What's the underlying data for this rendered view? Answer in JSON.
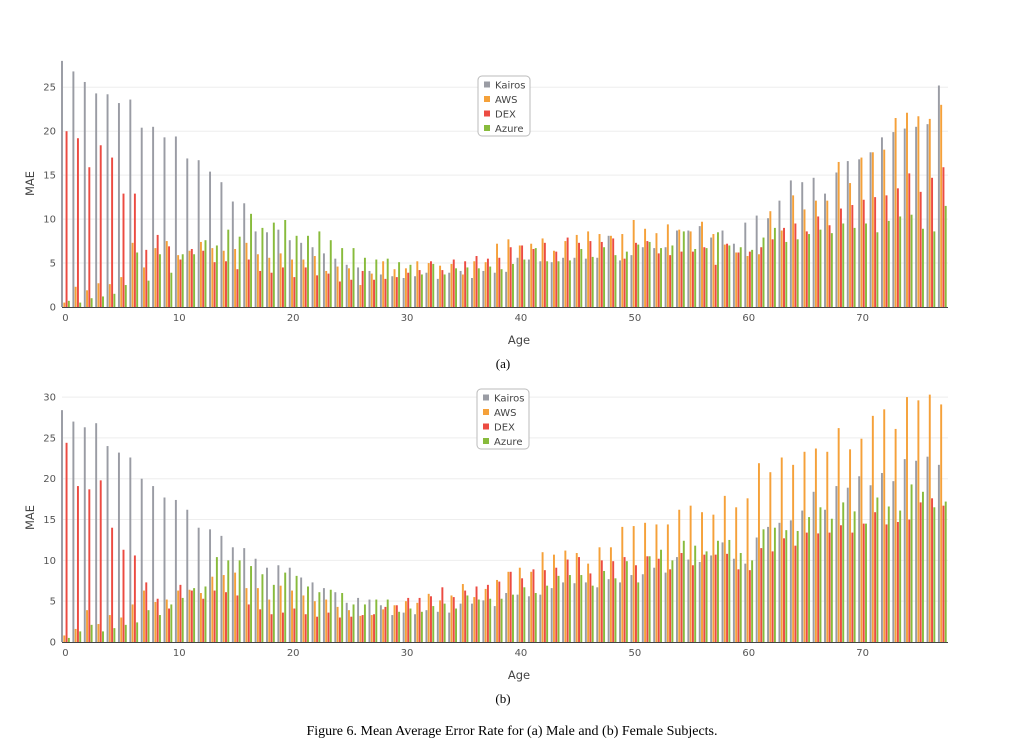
{
  "caption": "Figure 6. Mean Average Error Rate for (a) Male and (b) Female Subjects.",
  "colors": {
    "Kairos": "#9a9ca4",
    "AWS": "#f5a13a",
    "DEX": "#ec4b42",
    "Azure": "#88bb3c"
  },
  "chart_data": [
    {
      "type": "bar",
      "panel_label": "(a)",
      "xlabel": "Age",
      "ylabel": "MAE",
      "xlim": [
        -0.3,
        77.5
      ],
      "ylim": [
        0,
        28.1
      ],
      "xticks": [
        0,
        10,
        20,
        30,
        40,
        50,
        60,
        70
      ],
      "yticks": [
        0,
        5,
        10,
        15,
        20,
        25
      ],
      "grid": true,
      "legend_placement": "top-center",
      "x_start": 0,
      "series": [
        {
          "name": "Kairos",
          "values": [
            28.0,
            26.8,
            25.6,
            24.3,
            24.2,
            23.2,
            23.6,
            20.4,
            20.5,
            19.3,
            19.4,
            16.9,
            16.7,
            15.4,
            14.2,
            12.0,
            11.8,
            8.6,
            8.5,
            8.8,
            7.6,
            7.3,
            6.8,
            6.1,
            5.5,
            4.8,
            4.5,
            4.1,
            3.7,
            3.5,
            3.3,
            3.5,
            3.9,
            3.2,
            3.9,
            4.1,
            3.3,
            4.1,
            3.9,
            4.0,
            5.6,
            5.4,
            5.2,
            5.1,
            5.6,
            5.6,
            5.5,
            5.6,
            8.1,
            5.3,
            5.9,
            6.8,
            6.7,
            6.8,
            8.7,
            8.7,
            9.2,
            7.9,
            8.7,
            7.2,
            9.6,
            10.4,
            10.1,
            12.1,
            14.4,
            14.2,
            14.7,
            12.9,
            15.3,
            16.6,
            16.8,
            17.6,
            19.3,
            19.9,
            20.3,
            20.5,
            20.8,
            25.2
          ]
        },
        {
          "name": "AWS",
          "values": [
            0.5,
            2.3,
            1.9,
            2.7,
            2.6,
            3.4,
            7.3,
            4.5,
            6.7,
            7.5,
            5.9,
            6.4,
            7.4,
            6.7,
            6.4,
            6.6,
            7.3,
            6.0,
            5.6,
            6.1,
            5.4,
            5.4,
            5.8,
            4.1,
            4.6,
            4.4,
            2.5,
            3.8,
            5.2,
            4.3,
            4.4,
            5.2,
            5.0,
            4.7,
            4.9,
            3.7,
            5.2,
            5.1,
            7.2,
            7.7,
            7.0,
            7.2,
            7.8,
            6.4,
            7.5,
            8.2,
            8.6,
            8.3,
            8.1,
            8.3,
            9.9,
            8.9,
            8.4,
            9.4,
            8.8,
            8.6,
            9.7,
            8.3,
            7.1,
            6.2,
            5.8,
            6.0,
            10.9,
            8.7,
            12.7,
            11.1,
            12.1,
            12.1,
            16.5,
            14.1,
            17.0,
            17.6,
            17.9,
            21.5,
            22.1,
            21.7,
            21.4,
            23.0
          ]
        },
        {
          "name": "DEX",
          "values": [
            20.0,
            19.2,
            15.9,
            18.4,
            17.0,
            12.9,
            12.9,
            6.5,
            8.2,
            6.9,
            5.4,
            6.6,
            6.4,
            5.1,
            5.2,
            4.3,
            5.4,
            4.1,
            3.9,
            4.5,
            3.4,
            4.5,
            3.6,
            3.8,
            2.9,
            3.1,
            4.1,
            3.1,
            3.2,
            3.4,
            3.9,
            4.2,
            5.2,
            4.2,
            5.4,
            5.2,
            5.8,
            5.5,
            5.6,
            6.8,
            7.0,
            6.6,
            7.3,
            6.3,
            7.9,
            7.3,
            7.5,
            7.4,
            7.8,
            5.5,
            7.3,
            7.5,
            6.1,
            5.9,
            6.3,
            6.3,
            6.8,
            4.8,
            7.2,
            6.2,
            6.3,
            6.8,
            7.7,
            9.0,
            9.5,
            8.6,
            10.3,
            9.3,
            11.2,
            11.6,
            12.2,
            12.5,
            12.7,
            13.5,
            15.2,
            13.1,
            14.7,
            15.9
          ]
        },
        {
          "name": "Azure",
          "values": [
            0.7,
            0.5,
            1.0,
            1.2,
            1.5,
            2.5,
            6.2,
            3.0,
            6.0,
            3.9,
            6.0,
            6.0,
            7.6,
            7.0,
            8.8,
            8.0,
            10.6,
            9.0,
            9.6,
            9.9,
            8.1,
            8.1,
            8.6,
            7.6,
            6.7,
            6.7,
            5.6,
            5.4,
            5.5,
            5.1,
            4.8,
            3.7,
            4.9,
            3.7,
            4.4,
            4.5,
            4.4,
            4.6,
            4.3,
            4.9,
            5.4,
            6.7,
            5.2,
            5.2,
            5.3,
            6.6,
            5.7,
            6.8,
            5.9,
            6.3,
            7.1,
            7.4,
            6.7,
            7.0,
            8.6,
            6.6,
            6.7,
            8.5,
            7.0,
            6.8,
            6.5,
            7.9,
            9.0,
            7.4,
            7.7,
            8.3,
            8.8,
            8.4,
            9.5,
            9.0,
            9.5,
            8.5,
            9.8,
            10.3,
            10.5,
            8.9,
            8.6,
            11.5
          ]
        }
      ]
    },
    {
      "type": "bar",
      "panel_label": "(b)",
      "xlabel": "Age",
      "ylabel": "MAE",
      "xlim": [
        -0.3,
        77.5
      ],
      "ylim": [
        0,
        30.5
      ],
      "xticks": [
        0,
        10,
        20,
        30,
        40,
        50,
        60,
        70
      ],
      "yticks": [
        0,
        5,
        10,
        15,
        20,
        25,
        30
      ],
      "grid": true,
      "legend_placement": "top-center",
      "x_start": 0,
      "series": [
        {
          "name": "Kairos",
          "values": [
            28.4,
            27.0,
            26.3,
            26.8,
            24.0,
            23.2,
            22.6,
            20.0,
            19.1,
            17.7,
            17.4,
            16.2,
            14.0,
            13.8,
            13.0,
            11.6,
            11.5,
            10.2,
            9.1,
            9.4,
            9.1,
            7.9,
            7.3,
            6.6,
            6.1,
            4.8,
            5.4,
            5.2,
            4.5,
            3.3,
            3.6,
            3.4,
            3.9,
            3.7,
            3.6,
            4.7,
            4.7,
            5.1,
            4.4,
            6.0,
            5.8,
            5.6,
            5.8,
            6.6,
            7.3,
            7.2,
            7.3,
            6.7,
            7.7,
            7.3,
            8.2,
            8.3,
            9.1,
            8.5,
            10.4,
            10.1,
            9.8,
            10.6,
            12.2,
            10.2,
            9.6,
            12.8,
            14.1,
            14.6,
            14.9,
            16.1,
            18.4,
            16.2,
            19.1,
            18.9,
            20.3,
            19.2,
            20.7,
            19.7,
            22.4,
            22.2,
            22.7,
            21.7
          ]
        },
        {
          "name": "AWS",
          "values": [
            0.8,
            1.6,
            3.9,
            2.2,
            3.3,
            3.0,
            4.6,
            6.3,
            4.9,
            5.2,
            6.3,
            6.4,
            6.0,
            8.0,
            8.2,
            8.5,
            6.6,
            6.6,
            5.2,
            6.9,
            6.3,
            5.7,
            5.0,
            5.2,
            4.3,
            3.9,
            3.2,
            3.3,
            4.0,
            4.5,
            5.0,
            4.8,
            5.9,
            5.1,
            5.7,
            7.1,
            5.5,
            6.5,
            7.6,
            8.6,
            9.1,
            8.6,
            11.0,
            10.7,
            11.2,
            10.9,
            9.6,
            11.6,
            11.6,
            14.1,
            14.2,
            14.6,
            14.4,
            14.4,
            16.2,
            16.7,
            15.9,
            15.6,
            17.9,
            16.5,
            17.6,
            21.9,
            20.8,
            22.6,
            21.7,
            23.3,
            23.7,
            23.3,
            26.2,
            23.6,
            24.9,
            27.7,
            28.5,
            26.1,
            30.0,
            29.6,
            30.3,
            29.1
          ]
        },
        {
          "name": "DEX",
          "values": [
            24.4,
            19.1,
            18.7,
            19.8,
            14.0,
            11.3,
            10.6,
            7.3,
            5.3,
            4.1,
            7.0,
            6.3,
            5.3,
            6.3,
            6.1,
            5.7,
            4.6,
            4.0,
            3.4,
            3.6,
            4.1,
            3.4,
            3.1,
            3.6,
            3.0,
            3.1,
            3.3,
            3.4,
            4.3,
            4.5,
            5.4,
            5.4,
            5.6,
            6.7,
            5.5,
            6.3,
            6.8,
            7.0,
            7.4,
            8.6,
            7.8,
            8.9,
            8.8,
            9.1,
            10.1,
            10.4,
            8.4,
            10.0,
            9.9,
            10.4,
            9.4,
            10.5,
            10.2,
            8.9,
            10.9,
            9.4,
            10.7,
            10.7,
            10.8,
            8.9,
            8.8,
            11.5,
            11.1,
            12.7,
            11.8,
            13.4,
            13.3,
            13.4,
            14.3,
            13.4,
            14.5,
            15.9,
            14.4,
            14.7,
            15.0,
            17.1,
            17.6,
            16.7
          ]
        },
        {
          "name": "Azure",
          "values": [
            0.5,
            1.3,
            2.1,
            1.3,
            1.7,
            2.1,
            2.4,
            3.9,
            3.3,
            4.6,
            5.4,
            6.6,
            6.8,
            10.4,
            10.0,
            10.0,
            9.3,
            8.3,
            7.0,
            8.5,
            8.1,
            6.8,
            6.1,
            6.4,
            6.0,
            4.6,
            4.6,
            5.2,
            5.2,
            3.7,
            4.1,
            3.7,
            4.4,
            4.7,
            4.1,
            5.7,
            5.2,
            5.3,
            5.3,
            5.8,
            6.7,
            6.0,
            6.9,
            8.1,
            8.2,
            8.2,
            6.9,
            8.7,
            7.8,
            9.9,
            7.3,
            10.5,
            11.3,
            10.0,
            12.4,
            11.8,
            11.1,
            12.4,
            12.5,
            10.9,
            10.0,
            13.8,
            14.0,
            13.7,
            13.6,
            15.3,
            16.5,
            15.1,
            17.1,
            16.0,
            14.5,
            17.7,
            16.6,
            16.1,
            19.3,
            18.4,
            16.5,
            17.2
          ]
        }
      ]
    }
  ]
}
